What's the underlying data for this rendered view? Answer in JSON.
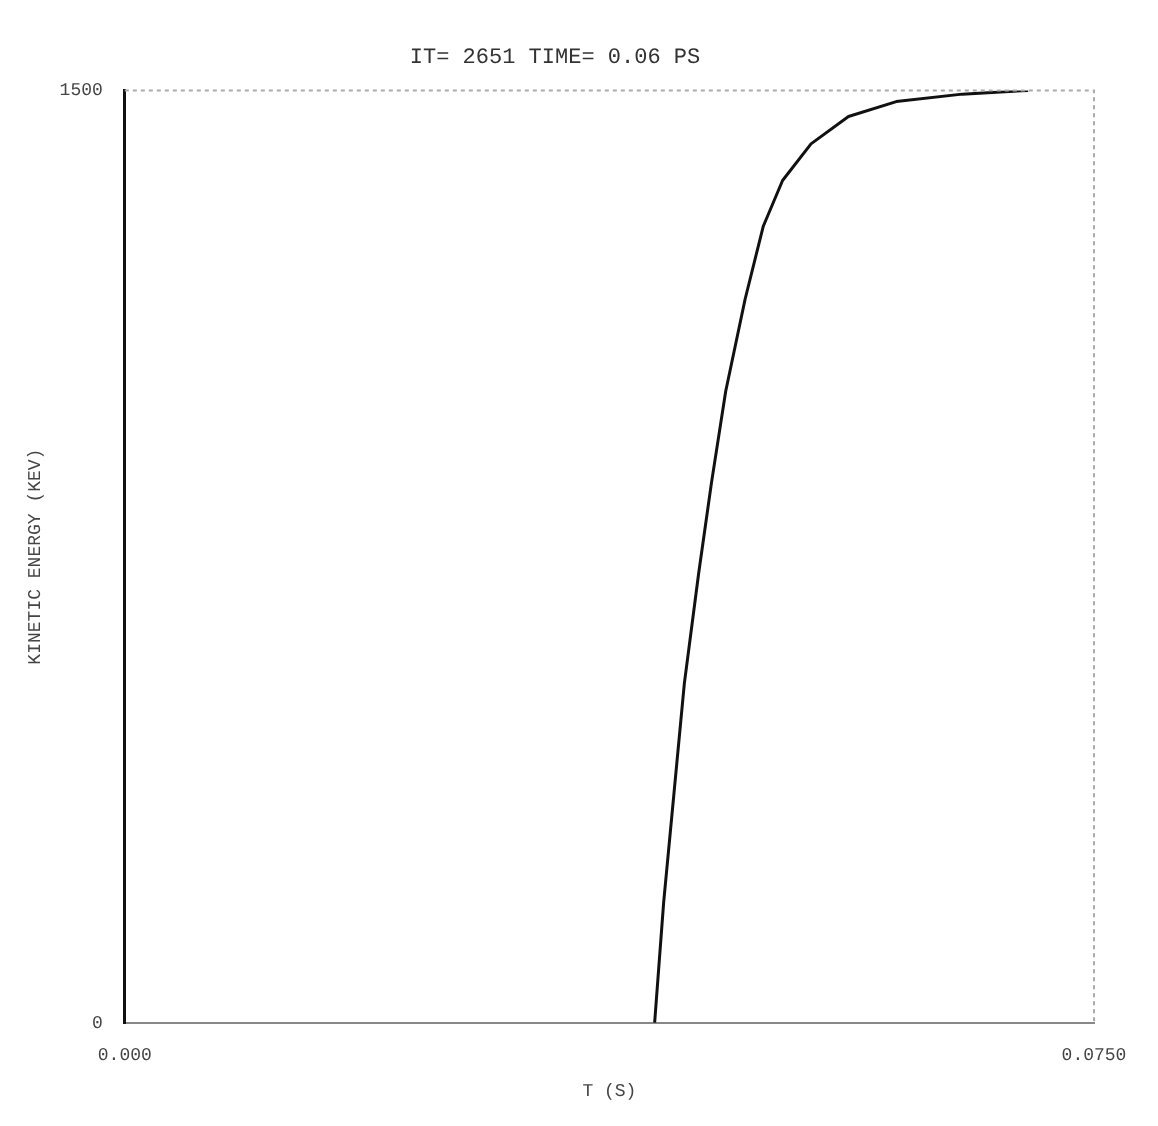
{
  "chart_data": {
    "type": "line",
    "title": "IT= 2651 TIME= 0.06 PS",
    "xlabel": "T (S)",
    "ylabel": "KINETIC ENERGY (KEV)",
    "x": [
      0.041,
      0.0417,
      0.0425,
      0.0433,
      0.0444,
      0.0454,
      0.0465,
      0.048,
      0.0494,
      0.0509,
      0.0531,
      0.056,
      0.0597,
      0.0648,
      0.0699
    ],
    "series": [
      {
        "color": "#111111",
        "values": [
          0,
          194,
          370,
          546,
          722,
          869,
          1016,
          1164,
          1281,
          1355,
          1414,
          1458,
          1482,
          1494,
          1500
        ]
      }
    ],
    "xlim": [
      0,
      0.075
    ],
    "xticks": [
      {
        "value": 0,
        "label": "0.000"
      },
      {
        "value": 0.075,
        "label": "0.0750"
      }
    ],
    "ylim": [
      0,
      1500
    ],
    "yticks": [
      0,
      1500
    ],
    "grid": false,
    "legend": false,
    "marker": "none",
    "line_style": "solid"
  }
}
